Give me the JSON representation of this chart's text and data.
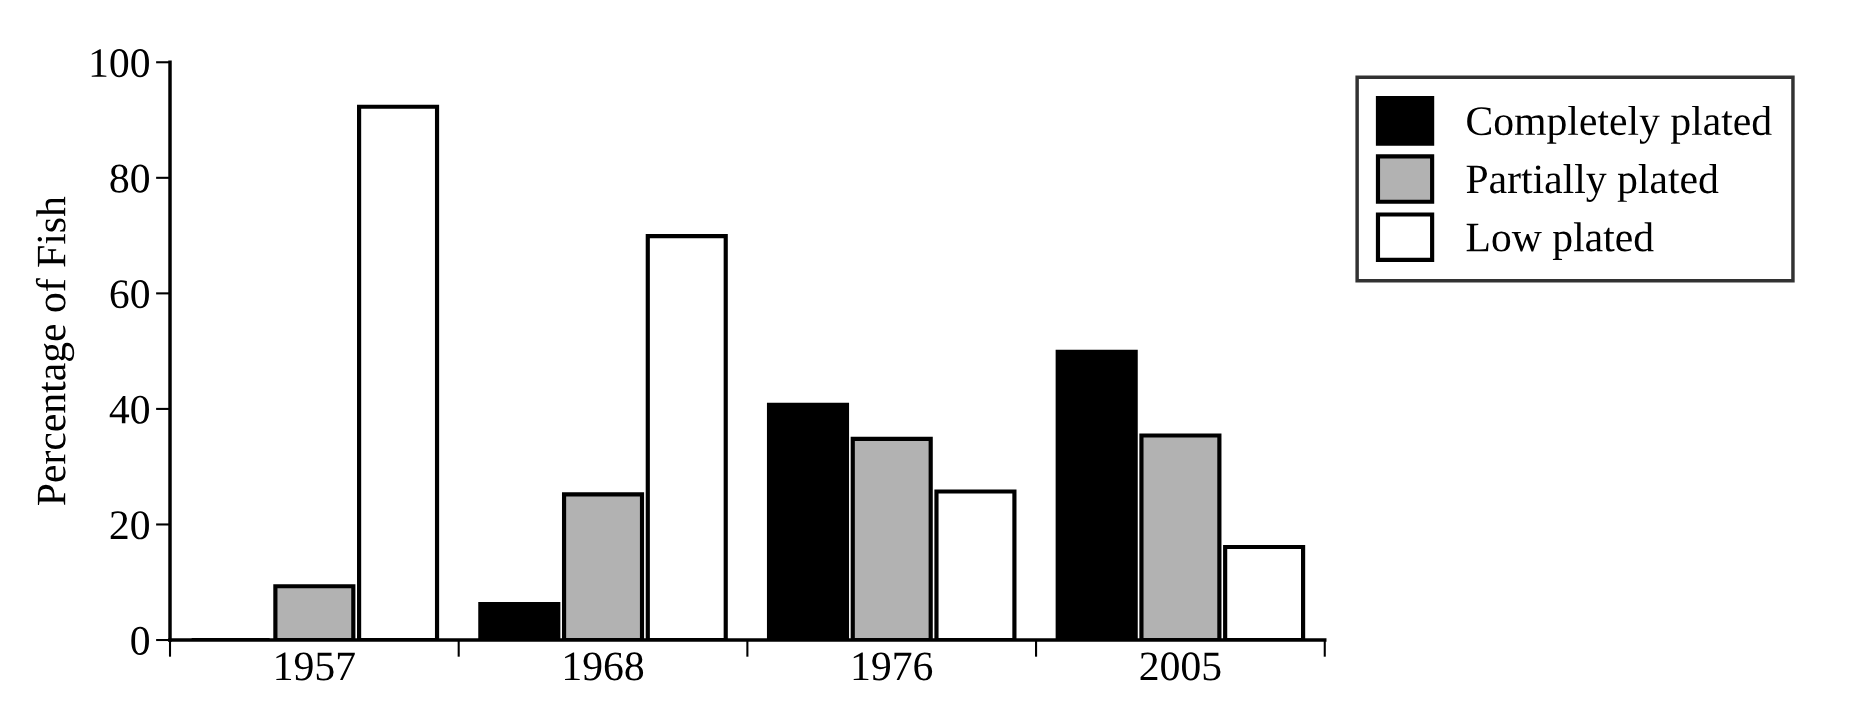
{
  "chart_data": {
    "type": "bar",
    "ylabel": "Percentage of Fish",
    "categories": [
      "1957",
      "1968",
      "1976",
      "2005"
    ],
    "series": [
      {
        "name": "Completely plated",
        "color": "#000000",
        "values": [
          0,
          6.2,
          40.7,
          49.9
        ]
      },
      {
        "name": "Partially plated",
        "color": "#b2b2b2",
        "values": [
          9.3,
          25.2,
          34.8,
          35.4
        ]
      },
      {
        "name": "Low plated",
        "color": "#ffffff",
        "values": [
          92.3,
          69.9,
          25.7,
          16.1
        ]
      }
    ],
    "ylim": [
      0,
      100
    ],
    "yticks": [
      0,
      20,
      40,
      60,
      80,
      100
    ],
    "grid": false,
    "legend": "top right"
  }
}
